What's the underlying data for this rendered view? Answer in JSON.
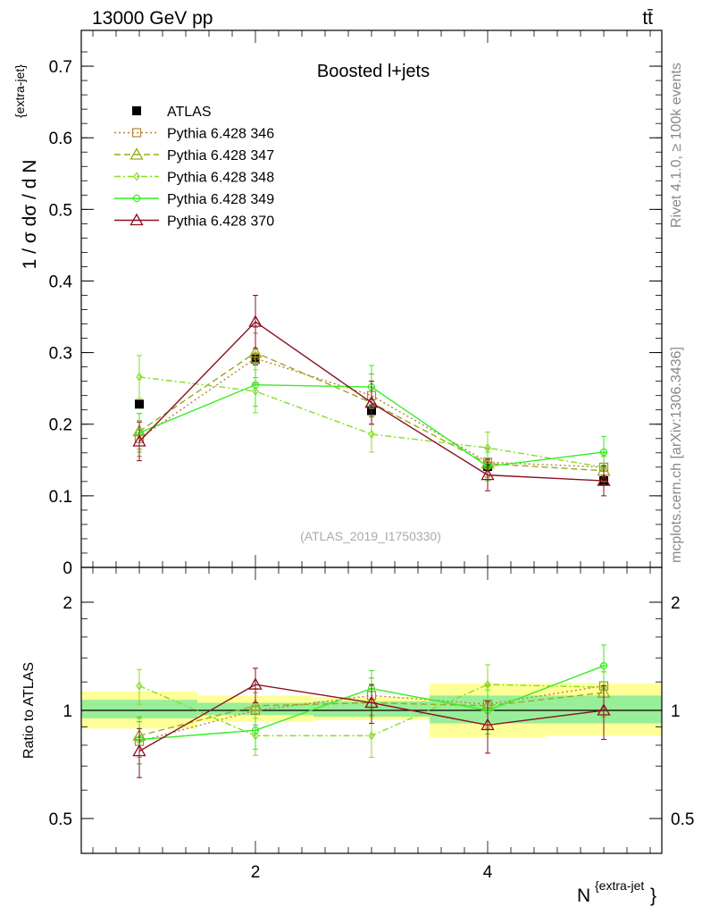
{
  "header": {
    "left": "13000 GeV pp",
    "right": "tt̄"
  },
  "side_labels": {
    "rivet": "Rivet 4.1.0, ≥ 100k events",
    "mcplots": "mcplots.cern.ch [arXiv:1306.3436]"
  },
  "colors": {
    "atlas": "#000000",
    "p346": "#b8823a",
    "p347": "#9aaa1a",
    "p348": "#88dd22",
    "p349": "#33ee22",
    "p370": "#8b1020",
    "band_inner": "#99ee99",
    "band_outer": "#ffff99"
  },
  "chart_data": [
    {
      "type": "line",
      "panel": "main",
      "title": "Boosted l+jets",
      "watermark": "(ATLAS_2019_I1750330)",
      "xlabel_main": "N",
      "xlabel_sup": "{extra-jet",
      "xlabel_close": "}",
      "ylabel": "1 / σ dσ / d N",
      "ylabel_sup": "{extra-jet}",
      "xlim": [
        0.5,
        5.5
      ],
      "ylim": [
        0,
        0.75
      ],
      "yticks": [
        0,
        0.1,
        0.2,
        0.3,
        0.4,
        0.5,
        0.6,
        0.7
      ],
      "ytick_labels": [
        "0",
        "0.1",
        "0.2",
        "0.3",
        "0.4",
        "0.5",
        "0.6",
        "0.7"
      ],
      "x": [
        1,
        2,
        3,
        4,
        5
      ],
      "series": [
        {
          "name": "ATLAS",
          "key": "atlas",
          "marker": "square-filled",
          "values": [
            0.228,
            0.291,
            0.219,
            0.141,
            0.121
          ],
          "errors": [
            0.0,
            0.008,
            0.008,
            0.006,
            0.006
          ]
        },
        {
          "name": "Pythia 6.428 346",
          "key": "p346",
          "marker": "square-open",
          "dash": "2,3",
          "values": [
            0.18,
            0.292,
            0.24,
            0.147,
            0.14
          ],
          "errors": [
            0.025,
            0.035,
            0.03,
            0.02,
            0.02
          ]
        },
        {
          "name": "Pythia 6.428 347",
          "key": "p347",
          "marker": "triangle-open",
          "dash": "7,4",
          "values": [
            0.19,
            0.3,
            0.23,
            0.145,
            0.135
          ],
          "errors": [
            0.025,
            0.035,
            0.03,
            0.02,
            0.02
          ]
        },
        {
          "name": "Pythia 6.428 348",
          "key": "p348",
          "marker": "diamond-open",
          "dash": "7,3,2,3",
          "values": [
            0.266,
            0.246,
            0.186,
            0.167,
            0.14
          ],
          "errors": [
            0.03,
            0.03,
            0.025,
            0.022,
            0.02
          ]
        },
        {
          "name": "Pythia 6.428 349",
          "key": "p349",
          "marker": "circle-cross",
          "dash": "",
          "values": [
            0.188,
            0.255,
            0.252,
            0.141,
            0.161
          ],
          "errors": [
            0.027,
            0.03,
            0.03,
            0.02,
            0.022
          ]
        },
        {
          "name": "Pythia 6.428 370",
          "key": "p370",
          "marker": "triangle-open",
          "dash": "",
          "values": [
            0.176,
            0.343,
            0.23,
            0.129,
            0.121
          ],
          "errors": [
            0.027,
            0.037,
            0.03,
            0.022,
            0.021
          ]
        }
      ]
    },
    {
      "type": "line",
      "panel": "ratio",
      "ylabel": "Ratio to ATLAS",
      "ylim_log": [
        0.4,
        2.5
      ],
      "yticks": [
        0.5,
        1,
        2
      ],
      "ytick_labels": [
        "0.5",
        "1",
        "2"
      ],
      "xticks": [
        2,
        4
      ],
      "xtick_labels": [
        "2",
        "4"
      ],
      "bands": [
        {
          "x": [
            0.5,
            1.5
          ],
          "inner": [
            0.95,
            1.07
          ],
          "outer": [
            0.89,
            1.13
          ]
        },
        {
          "x": [
            1.5,
            2.5
          ],
          "inner": [
            0.97,
            1.05
          ],
          "outer": [
            0.93,
            1.1
          ]
        },
        {
          "x": [
            2.5,
            3.5
          ],
          "inner": [
            0.96,
            1.06
          ],
          "outer": [
            0.94,
            1.09
          ]
        },
        {
          "x": [
            3.5,
            4.5
          ],
          "inner": [
            0.92,
            1.1
          ],
          "outer": [
            0.84,
            1.19
          ]
        },
        {
          "x": [
            4.5,
            5.5
          ],
          "inner": [
            0.92,
            1.1
          ],
          "outer": [
            0.85,
            1.19
          ]
        }
      ],
      "x": [
        1,
        2,
        3,
        4,
        5
      ],
      "series": [
        {
          "name": "Pythia 6.428 346",
          "key": "p346",
          "marker": "square-open",
          "dash": "2,3",
          "values": [
            0.82,
            1.0,
            1.1,
            1.04,
            1.17
          ],
          "errors": [
            0.11,
            0.12,
            0.13,
            0.14,
            0.16
          ]
        },
        {
          "name": "Pythia 6.428 347",
          "key": "p347",
          "marker": "triangle-open",
          "dash": "7,4",
          "values": [
            0.85,
            1.03,
            1.05,
            1.03,
            1.12
          ],
          "errors": [
            0.11,
            0.12,
            0.13,
            0.14,
            0.16
          ]
        },
        {
          "name": "Pythia 6.428 348",
          "key": "p348",
          "marker": "diamond-open",
          "dash": "7,3,2,3",
          "values": [
            1.17,
            0.85,
            0.85,
            1.18,
            1.16
          ],
          "errors": [
            0.13,
            0.1,
            0.11,
            0.16,
            0.17
          ]
        },
        {
          "name": "Pythia 6.428 349",
          "key": "p349",
          "marker": "circle-cross",
          "dash": "",
          "values": [
            0.83,
            0.88,
            1.15,
            1.0,
            1.33
          ],
          "errors": [
            0.12,
            0.1,
            0.14,
            0.14,
            0.19
          ]
        },
        {
          "name": "Pythia 6.428 370",
          "key": "p370",
          "marker": "triangle-open",
          "dash": "",
          "values": [
            0.77,
            1.18,
            1.05,
            0.91,
            1.0
          ],
          "errors": [
            0.12,
            0.13,
            0.13,
            0.15,
            0.17
          ]
        }
      ]
    }
  ]
}
